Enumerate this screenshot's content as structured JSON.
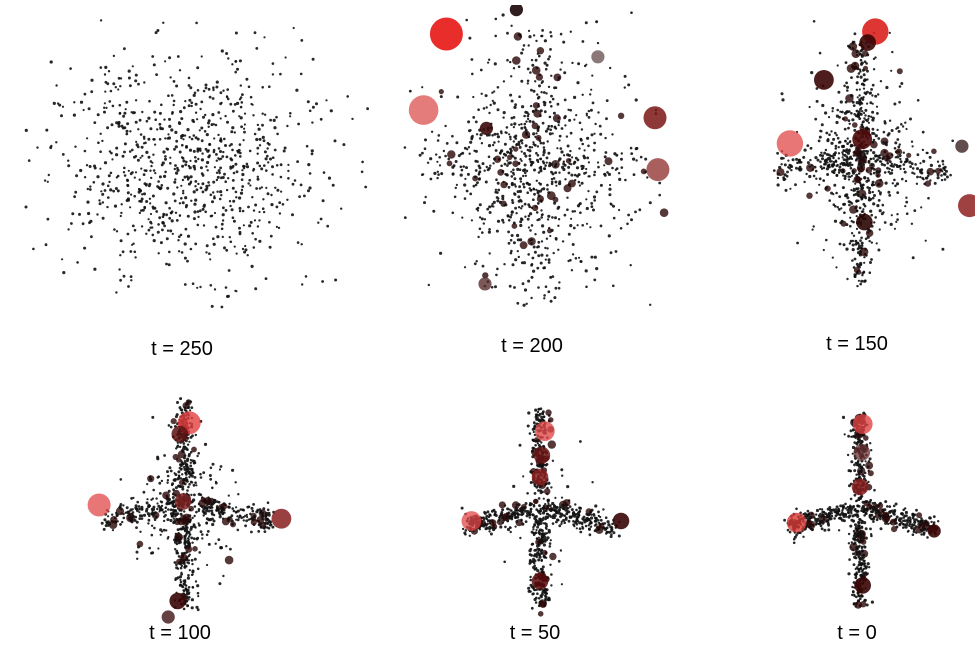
{
  "figure": {
    "panels": [
      {
        "label": "t = 250"
      },
      {
        "label": "t = 200"
      },
      {
        "label": "t = 150"
      },
      {
        "label": "t = 100"
      },
      {
        "label": "t = 50"
      },
      {
        "label": "t = 0"
      }
    ]
  },
  "colors": {
    "points": "#111111",
    "highlight": "#e8221f",
    "dark_red": "#4a0a0a"
  },
  "chart_data": [
    {
      "type": "scatter",
      "title": "t = 250",
      "t": 250,
      "description_shape": "isotropic gaussian cloud",
      "n_points": 900,
      "spread": [
        1.0,
        1.0
      ],
      "arms": 0,
      "highlight_points": []
    },
    {
      "type": "scatter",
      "title": "t = 200",
      "t": 200,
      "n_points": 900,
      "spread": [
        0.85,
        1.0
      ],
      "arm_strength": 0.25,
      "highlight_points": [
        {
          "x": -0.62,
          "y": 0.86,
          "size": 5,
          "color": "#e8221f",
          "alpha": 0.95
        },
        {
          "x": -0.78,
          "y": 0.36,
          "size": 4.5,
          "color": "#d9504e",
          "alpha": 0.75
        },
        {
          "x": 0.84,
          "y": 0.31,
          "size": 3.5,
          "color": "#7a1515",
          "alpha": 0.85
        },
        {
          "x": 0.86,
          "y": -0.03,
          "size": 3.5,
          "color": "#8e2a2a",
          "alpha": 0.75
        },
        {
          "x": -0.13,
          "y": 1.02,
          "size": 2,
          "color": "#1a0505",
          "alpha": 0.9
        },
        {
          "x": 0.44,
          "y": 0.71,
          "size": 2,
          "color": "#5a4040",
          "alpha": 0.7
        },
        {
          "x": -0.34,
          "y": 0.24,
          "size": 2,
          "color": "#3b0a0a",
          "alpha": 0.9
        },
        {
          "x": -0.35,
          "y": -0.78,
          "size": 2,
          "color": "#5a3030",
          "alpha": 0.8
        }
      ]
    },
    {
      "type": "scatter",
      "title": "t = 150",
      "t": 150,
      "n_points": 900,
      "spread": [
        0.7,
        0.85
      ],
      "arm_strength": 0.55,
      "highlight_points": [
        {
          "x": 0.14,
          "y": 0.93,
          "size": 4,
          "color": "#d9201d",
          "alpha": 0.9
        },
        {
          "x": -0.64,
          "y": 0.12,
          "size": 4,
          "color": "#e04848",
          "alpha": 0.75
        },
        {
          "x": 1.0,
          "y": -0.33,
          "size": 3.5,
          "color": "#8e2020",
          "alpha": 0.85
        },
        {
          "x": -0.33,
          "y": 0.58,
          "size": 3,
          "color": "#3b0505",
          "alpha": 0.9
        },
        {
          "x": 0.02,
          "y": 0.15,
          "size": 3,
          "color": "#4a0808",
          "alpha": 0.9
        },
        {
          "x": 0.07,
          "y": 0.85,
          "size": 2.5,
          "color": "#3a0505",
          "alpha": 0.9
        },
        {
          "x": 0.04,
          "y": -0.45,
          "size": 2.5,
          "color": "#2a0505",
          "alpha": 0.9
        },
        {
          "x": 0.93,
          "y": 0.1,
          "size": 2,
          "color": "#3a2020",
          "alpha": 0.8
        }
      ]
    },
    {
      "type": "scatter",
      "title": "t = 100",
      "t": 100,
      "n_points": 900,
      "spread": [
        0.6,
        0.75
      ],
      "arm_strength": 0.8,
      "highlight_points": [
        {
          "x": 0.04,
          "y": 0.72,
          "size": 3.5,
          "color": "#e34040",
          "alpha": 0.8
        },
        {
          "x": -0.82,
          "y": 0.0,
          "size": 3.5,
          "color": "#e04848",
          "alpha": 0.75
        },
        {
          "x": 0.92,
          "y": -0.12,
          "size": 3,
          "color": "#8a1f1f",
          "alpha": 0.85
        },
        {
          "x": -0.02,
          "y": 0.03,
          "size": 2.5,
          "color": "#7a2020",
          "alpha": 0.85
        },
        {
          "x": -0.05,
          "y": 0.62,
          "size": 2.5,
          "color": "#5a1010",
          "alpha": 0.85
        },
        {
          "x": -0.07,
          "y": -0.84,
          "size": 2.5,
          "color": "#3a0505",
          "alpha": 0.9
        },
        {
          "x": -0.16,
          "y": -0.98,
          "size": 2,
          "color": "#4a2020",
          "alpha": 0.85
        }
      ]
    },
    {
      "type": "scatter",
      "title": "t = 50",
      "t": 50,
      "n_points": 900,
      "spread": [
        0.55,
        0.7
      ],
      "arm_strength": 0.95,
      "highlight_points": [
        {
          "x": 0.05,
          "y": 0.72,
          "size": 3,
          "color": "#e04a4a",
          "alpha": 0.8
        },
        {
          "x": -0.72,
          "y": -0.1,
          "size": 3,
          "color": "#e04848",
          "alpha": 0.75
        },
        {
          "x": 0.0,
          "y": 0.3,
          "size": 2.5,
          "color": "#8a2020",
          "alpha": 0.85
        },
        {
          "x": 0.02,
          "y": 0.5,
          "size": 2.5,
          "color": "#6a1515",
          "alpha": 0.85
        },
        {
          "x": 0.0,
          "y": -0.65,
          "size": 2.5,
          "color": "#5a0a0a",
          "alpha": 0.85
        },
        {
          "x": 0.85,
          "y": -0.1,
          "size": 2.5,
          "color": "#3a0505",
          "alpha": 0.9
        }
      ]
    },
    {
      "type": "scatter",
      "title": "t = 0",
      "t": 0,
      "n_points": 900,
      "spread": [
        0.5,
        0.65
      ],
      "arm_strength": 1.0,
      "highlight_points": [
        {
          "x": 0.03,
          "y": 0.82,
          "size": 3,
          "color": "#e04444",
          "alpha": 0.8
        },
        {
          "x": -0.7,
          "y": -0.12,
          "size": 3,
          "color": "#d63a36",
          "alpha": 0.8
        },
        {
          "x": 0.0,
          "y": 0.22,
          "size": 2.5,
          "color": "#8a1f1f",
          "alpha": 0.85
        },
        {
          "x": 0.02,
          "y": 0.55,
          "size": 2.5,
          "color": "#6a3030",
          "alpha": 0.75
        },
        {
          "x": 0.03,
          "y": -0.72,
          "size": 2.5,
          "color": "#3a0505",
          "alpha": 0.9
        },
        {
          "x": 0.82,
          "y": -0.2,
          "size": 2,
          "color": "#3a0505",
          "alpha": 0.9
        }
      ]
    }
  ]
}
